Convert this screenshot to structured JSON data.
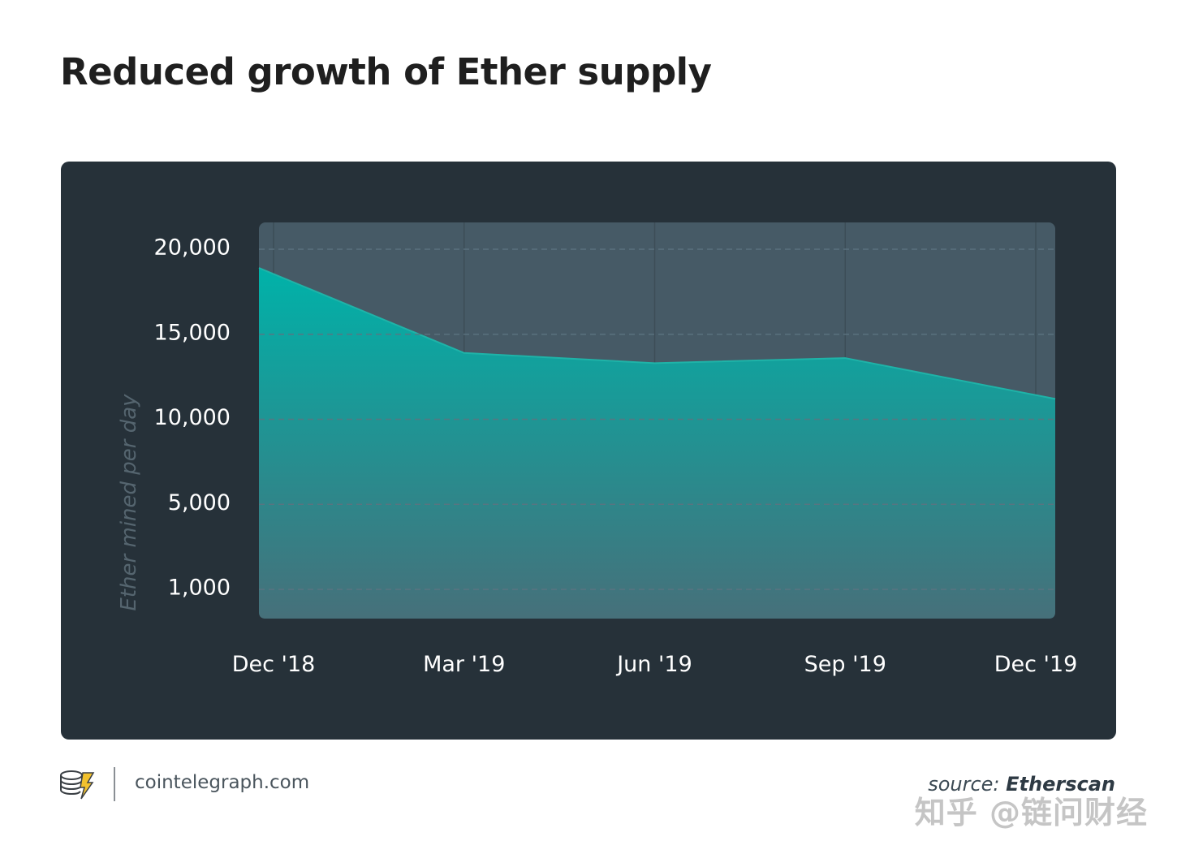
{
  "title": "Reduced growth of Ether supply",
  "chart_data": {
    "type": "area",
    "title": "Reduced growth of Ether supply",
    "xlabel": "",
    "ylabel": "Ether mined per day",
    "categories": [
      "Dec '18",
      "Mar '19",
      "Jun '19",
      "Sep '19",
      "Dec '19"
    ],
    "x_tick_labels": [
      "Dec '18",
      "Mar '19",
      "Jun '19",
      "Sep '19",
      "Dec '19"
    ],
    "y_tick_labels": [
      "20,000",
      "15,000",
      "10,000",
      "5,000",
      "1,000"
    ],
    "y_ticks": [
      20000,
      15000,
      10000,
      5000,
      1000
    ],
    "series": [
      {
        "values": [
          18900,
          13900,
          13300,
          13600,
          11200
        ]
      }
    ],
    "ylim": [
      0,
      20000
    ],
    "grid": true,
    "legend": "none",
    "colors": {
      "fill_top": "#00b2a9",
      "fill_bottom": "#46707a",
      "line": "#1fb3a8",
      "plot_bg": "#465a66",
      "panel_bg": "#263139",
      "tick_text": "#ffffff",
      "ylabel_text": "#55656f",
      "grid": "#5d7481"
    }
  },
  "footer": {
    "site": "cointelegraph.com",
    "source_prefix": "source:",
    "source_name": "Etherscan",
    "logo_icon": "cointelegraph-logo-icon"
  },
  "watermark": "知乎 @链问财经"
}
